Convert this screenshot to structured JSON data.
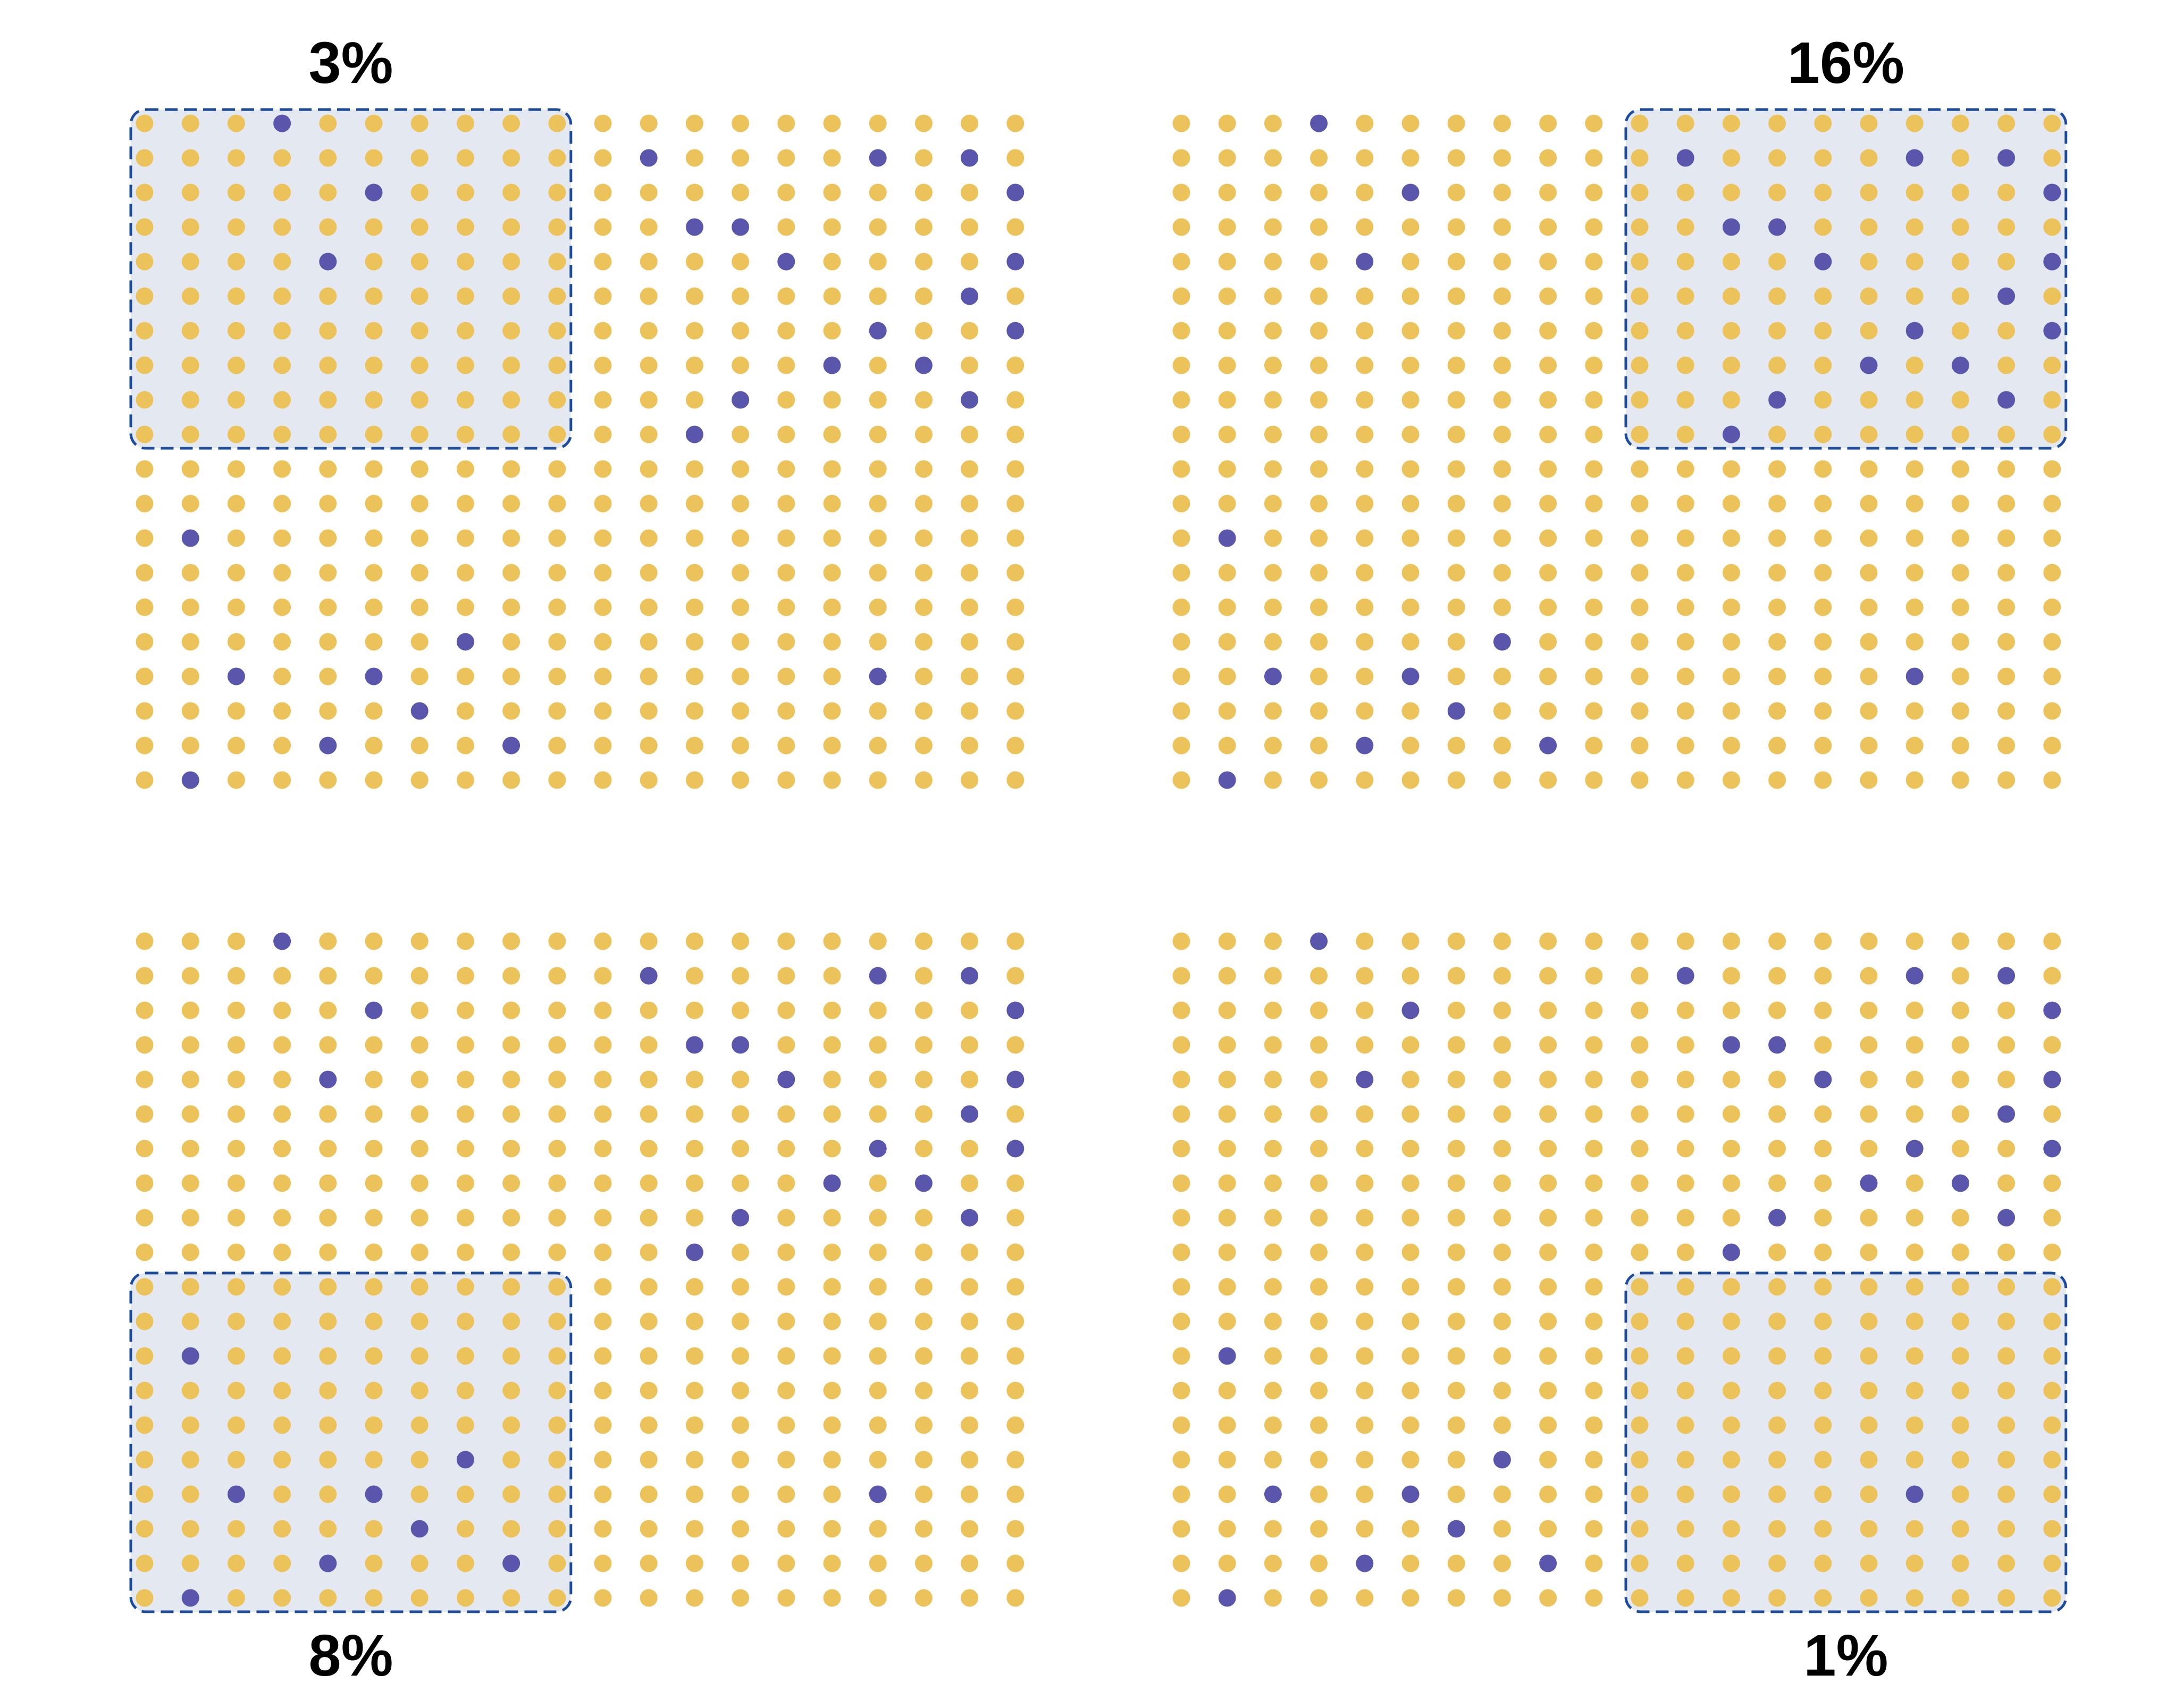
{
  "colors": {
    "background": "#ffffff",
    "dot_majority": "#ecc35a",
    "dot_minority": "#5a56ab",
    "box_fill": "#e4e9f1",
    "box_stroke": "#1b4b9a",
    "label_color": "#000000"
  },
  "grid": {
    "rows": 20,
    "cols": 20,
    "highlight_rows": 10,
    "highlight_cols": 10,
    "minority_cells": [
      [
        0,
        3
      ],
      [
        1,
        11
      ],
      [
        1,
        16
      ],
      [
        1,
        18
      ],
      [
        2,
        5
      ],
      [
        2,
        19
      ],
      [
        3,
        12
      ],
      [
        3,
        13
      ],
      [
        4,
        4
      ],
      [
        4,
        14
      ],
      [
        4,
        19
      ],
      [
        5,
        18
      ],
      [
        6,
        16
      ],
      [
        6,
        19
      ],
      [
        7,
        15
      ],
      [
        7,
        17
      ],
      [
        8,
        13
      ],
      [
        8,
        18
      ],
      [
        9,
        12
      ],
      [
        12,
        1
      ],
      [
        15,
        7
      ],
      [
        16,
        2
      ],
      [
        16,
        5
      ],
      [
        16,
        16
      ],
      [
        17,
        6
      ],
      [
        18,
        4
      ],
      [
        18,
        8
      ],
      [
        19,
        1
      ]
    ]
  },
  "panels": [
    {
      "id": "top-left",
      "label": "3%",
      "highlight": "top-left",
      "label_position": "above"
    },
    {
      "id": "top-right",
      "label": "16%",
      "highlight": "top-right",
      "label_position": "above"
    },
    {
      "id": "bottom-left",
      "label": "8%",
      "highlight": "bottom-left",
      "label_position": "below"
    },
    {
      "id": "bottom-right",
      "label": "1%",
      "highlight": "bottom-right",
      "label_position": "below"
    }
  ]
}
